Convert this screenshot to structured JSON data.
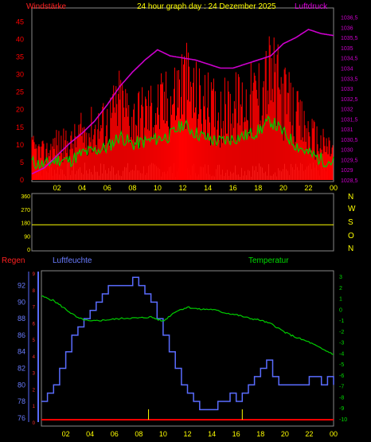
{
  "header": {
    "left_label": "Windstärke",
    "title": "24 hour graph day : 24 Dezember 2025",
    "right_label": "Luftdruck"
  },
  "direction_labels": [
    "N",
    "W",
    "S",
    "O",
    "N"
  ],
  "bottom_labels": {
    "regen": "Regen",
    "humidity": "Luftfeuchte",
    "temperature": "Temperatur"
  },
  "colors": {
    "wind": "#ff0000",
    "avg_wind": "#00cc00",
    "pressure": "#cc00cc",
    "direction": "#ffff00",
    "humidity": "#5a6cff",
    "temperature": "#00cc00",
    "rain": "#ff0000",
    "light": "#d0f0d0"
  },
  "chart_data": [
    {
      "type": "bar",
      "title": "24 hour graph day : 24 Dezember 2025",
      "x_ticks": [
        "02",
        "04",
        "06",
        "08",
        "10",
        "12",
        "14",
        "16",
        "18",
        "20",
        "22",
        "00"
      ],
      "y_left_ticks": [
        0,
        5,
        10,
        15,
        20,
        25,
        30,
        35,
        40,
        45
      ],
      "y_right_ticks": [
        "1028,5",
        "1029",
        "1029,5",
        "1030",
        "1030,5",
        "1031",
        "1031,5",
        "1032",
        "1032,5",
        "1033",
        "1033,5",
        "1034",
        "1034,5",
        "1035",
        "1035,5",
        "1036",
        "1036,5"
      ],
      "ylim_left": [
        0,
        48
      ],
      "ylim_right": [
        1028.5,
        1036.8
      ],
      "series": [
        {
          "name": "Windstärke",
          "x": [
            0,
            1,
            2,
            3,
            4,
            5,
            6,
            7,
            8,
            9,
            10,
            11,
            12,
            13,
            14,
            15,
            16,
            17,
            18,
            19,
            20,
            21,
            22,
            23,
            24
          ],
          "values": [
            12,
            10,
            14,
            13,
            18,
            20,
            22,
            30,
            24,
            26,
            28,
            30,
            38,
            32,
            28,
            26,
            28,
            30,
            33,
            40,
            32,
            24,
            18,
            14,
            12
          ]
        },
        {
          "name": "Luftdruck",
          "x": [
            0,
            1,
            2,
            3,
            4,
            5,
            6,
            7,
            8,
            9,
            10,
            11,
            12,
            13,
            14,
            15,
            16,
            17,
            18,
            19,
            20,
            21,
            22,
            23,
            24
          ],
          "values": [
            1028.8,
            1029.1,
            1029.7,
            1030.3,
            1030.8,
            1031.4,
            1032.2,
            1033.1,
            1033.8,
            1034.4,
            1034.9,
            1034.6,
            1034.5,
            1034.4,
            1034.2,
            1034.0,
            1034.0,
            1034.2,
            1034.4,
            1034.6,
            1035.2,
            1035.5,
            1035.9,
            1035.7,
            1035.6
          ]
        }
      ]
    },
    {
      "type": "line",
      "x_ticks": [
        "02",
        "04",
        "06",
        "08",
        "10",
        "12",
        "14",
        "16",
        "18",
        "20",
        "22",
        "00"
      ],
      "y_ticks": [
        0,
        90,
        180,
        270,
        360
      ],
      "ylim": [
        0,
        360
      ],
      "series": [
        {
          "name": "",
          "x": [
            0,
            24
          ],
          "values": [
            165,
            165
          ]
        }
      ]
    },
    {
      "type": "line",
      "x_ticks": [
        "02",
        "04",
        "06",
        "08",
        "10",
        "12",
        "14",
        "16",
        "18",
        "20",
        "22",
        "00"
      ],
      "y_left_ticks": [
        76,
        78,
        80,
        82,
        84,
        86,
        88,
        90,
        92
      ],
      "y_rain_ticks": [
        0,
        1,
        2,
        3,
        4,
        5,
        6,
        7,
        8,
        9
      ],
      "y_right_ticks": [
        -10,
        -9,
        -8,
        -7,
        -6,
        -5,
        -4,
        -3,
        -2,
        -1,
        0,
        1,
        2,
        3
      ],
      "ylim_left": [
        75.5,
        93.5
      ],
      "ylim_right": [
        -10.3,
        3.3
      ],
      "series": [
        {
          "name": "Luftfeuchte",
          "x": [
            0.0,
            0.5,
            1.0,
            1.5,
            2.0,
            2.5,
            3.0,
            3.5,
            4.0,
            4.5,
            5.0,
            5.5,
            6.0,
            7.0,
            7.5,
            8.0,
            8.5,
            9.0,
            9.5,
            10.0,
            10.5,
            11.0,
            11.5,
            12.0,
            12.5,
            13.0,
            14.0,
            14.5,
            15.0,
            15.5,
            16.0,
            16.5,
            17.0,
            17.5,
            18.0,
            18.5,
            19.0,
            19.5,
            20.0,
            21.0,
            21.5,
            22.0,
            23.0,
            23.5,
            24.0
          ],
          "values": [
            78,
            79,
            80,
            82,
            84,
            86,
            87,
            88,
            89,
            90,
            91,
            92,
            92,
            92,
            93,
            92,
            91,
            90,
            88,
            86,
            84,
            82,
            80,
            79,
            78,
            77,
            77,
            78,
            78,
            79,
            78,
            79,
            80,
            81,
            82,
            83,
            81,
            80,
            80,
            80,
            80,
            81,
            80,
            81,
            80
          ]
        },
        {
          "name": "Temperatur",
          "x": [
            0,
            1,
            2,
            3,
            4,
            5,
            6,
            7,
            8,
            9,
            10,
            11,
            12,
            13,
            14,
            15,
            16,
            17,
            18,
            19,
            20,
            21,
            22,
            23,
            24
          ],
          "values": [
            1.2,
            0.8,
            0.0,
            -0.8,
            -1.1,
            -1.0,
            -0.9,
            -0.8,
            -0.8,
            -0.7,
            -1.1,
            -0.2,
            0.2,
            0.0,
            0.0,
            -0.3,
            -0.5,
            -0.8,
            -1.0,
            -1.4,
            -2.1,
            -2.6,
            -3.0,
            -3.6,
            -4.1
          ]
        },
        {
          "name": "Regen",
          "x": [
            0,
            24
          ],
          "values": [
            0,
            0
          ]
        }
      ]
    }
  ]
}
